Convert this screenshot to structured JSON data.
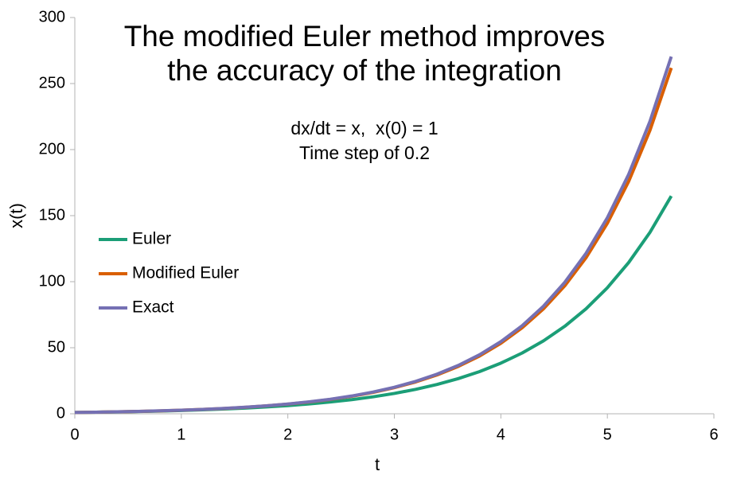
{
  "chart_data": {
    "type": "line",
    "title": [
      "The modified Euler method improves",
      "the accuracy of the integration"
    ],
    "subtitle": [
      "dx/dt = x,  x(0) = 1",
      "Time step of 0.2"
    ],
    "x_label": "t",
    "y_label": "x(t)",
    "x": [
      0,
      0.2,
      0.4,
      0.6,
      0.8,
      1,
      1.2,
      1.4,
      1.6,
      1.8,
      2,
      2.2,
      2.4,
      2.6,
      2.8,
      3,
      3.2,
      3.4,
      3.6,
      3.8,
      4,
      4.2,
      4.4,
      4.6,
      4.8,
      5,
      5.2,
      5.4,
      5.6
    ],
    "series": [
      {
        "name": "Euler",
        "color": "#1b9e77",
        "values": [
          1,
          1.2,
          1.44,
          1.73,
          2.07,
          2.49,
          2.99,
          3.58,
          4.3,
          5.16,
          6.19,
          7.43,
          8.92,
          10.7,
          12.84,
          15.41,
          18.49,
          22.19,
          26.62,
          31.95,
          38.34,
          46.01,
          55.21,
          66.25,
          79.5,
          95.4,
          114.48,
          137.37,
          164.84
        ]
      },
      {
        "name": "Modified Euler",
        "color": "#d95f02",
        "values": [
          1,
          1.22,
          1.49,
          1.82,
          2.22,
          2.7,
          3.3,
          4.02,
          4.91,
          5.99,
          7.3,
          8.91,
          10.87,
          13.26,
          16.18,
          19.74,
          24.09,
          29.38,
          35.85,
          43.74,
          53.36,
          65.1,
          79.42,
          96.89,
          118.21,
          144.21,
          175.94,
          214.64,
          261.86
        ]
      },
      {
        "name": "Exact",
        "color": "#7570b3",
        "values": [
          1,
          1.22,
          1.49,
          1.82,
          2.23,
          2.72,
          3.32,
          4.06,
          4.95,
          6.05,
          7.39,
          9.03,
          11.02,
          13.46,
          16.44,
          20.09,
          24.53,
          29.96,
          36.6,
          44.7,
          54.6,
          66.69,
          81.45,
          99.48,
          121.51,
          148.41,
          181.27,
          221.41,
          270.43
        ]
      }
    ],
    "xlim": [
      0,
      6
    ],
    "xticks": [
      0,
      1,
      2,
      3,
      4,
      5,
      6
    ],
    "ylim": [
      0,
      300
    ],
    "yticks": [
      0,
      50,
      100,
      150,
      200,
      250,
      300
    ],
    "grid": false,
    "legend": "left"
  }
}
